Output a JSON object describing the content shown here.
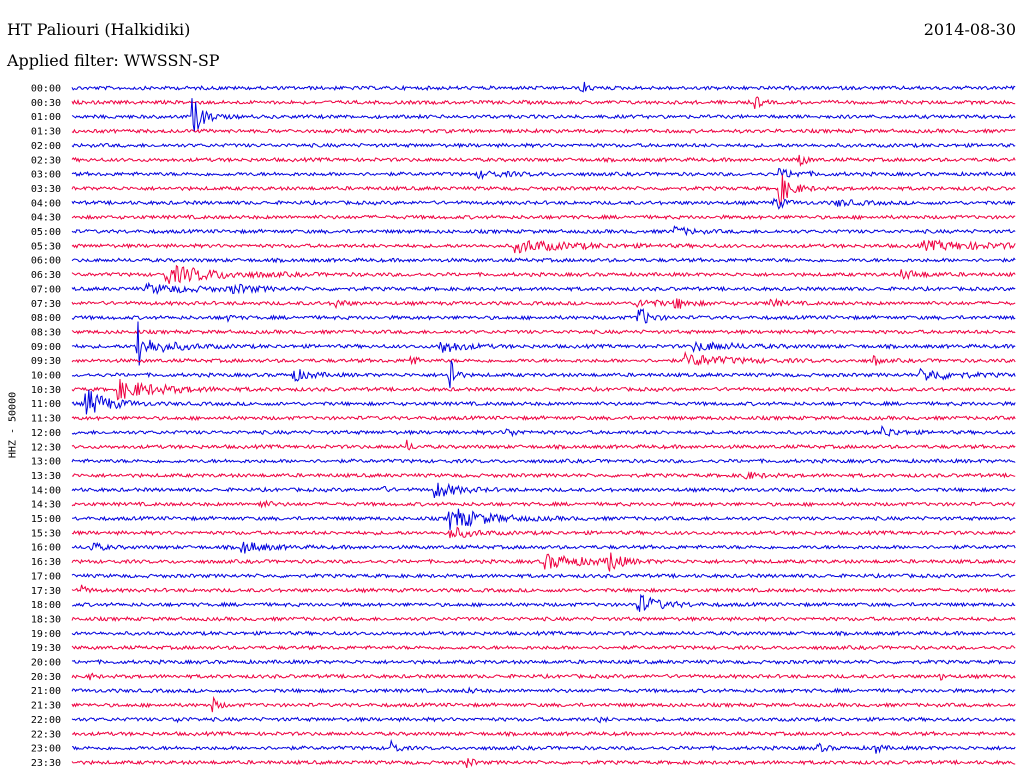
{
  "header": {
    "station": "HT Paliouri (Halkidiki)",
    "date": "2014-08-30",
    "filter": "Applied filter: WWSSN-SP"
  },
  "chart_data": {
    "type": "line",
    "title": "HT Paliouri (Halkidiki)",
    "subtitle": "Applied filter: WWSSN-SP",
    "ylabel": "HHZ - 50000",
    "colors": [
      "#0000dd",
      "#ee0040"
    ],
    "x_minutes_per_row": 30,
    "rows": [
      {
        "label": "00:00",
        "events": [
          {
            "t": 0.54,
            "a": 8,
            "d": 0.005
          }
        ]
      },
      {
        "label": "00:30",
        "events": [
          {
            "t": 0.725,
            "a": 7,
            "d": 0.004
          }
        ]
      },
      {
        "label": "01:00",
        "events": [
          {
            "t": 0.129,
            "a": 18,
            "d": 0.01
          }
        ]
      },
      {
        "label": "01:30",
        "events": []
      },
      {
        "label": "02:00",
        "events": []
      },
      {
        "label": "02:30",
        "events": [
          {
            "t": 0.77,
            "a": 10,
            "d": 0.005
          }
        ]
      },
      {
        "label": "03:00",
        "events": [
          {
            "t": 0.43,
            "a": 3,
            "d": 0.03
          },
          {
            "t": 0.75,
            "a": 4,
            "d": 0.02
          }
        ]
      },
      {
        "label": "03:30",
        "events": [
          {
            "t": 0.75,
            "a": 15,
            "d": 0.012
          }
        ]
      },
      {
        "label": "04:00",
        "events": [
          {
            "t": 0.745,
            "a": 7,
            "d": 0.008
          },
          {
            "t": 0.81,
            "a": 3,
            "d": 0.02
          }
        ]
      },
      {
        "label": "04:30",
        "events": []
      },
      {
        "label": "05:00",
        "events": [
          {
            "t": 0.64,
            "a": 4,
            "d": 0.015
          }
        ]
      },
      {
        "label": "05:30",
        "events": [
          {
            "t": 0.47,
            "a": 6,
            "d": 0.05
          },
          {
            "t": 0.9,
            "a": 4,
            "d": 0.08
          }
        ]
      },
      {
        "label": "06:00",
        "events": []
      },
      {
        "label": "06:30",
        "events": [
          {
            "t": 0.1,
            "a": 9,
            "d": 0.05
          },
          {
            "t": 0.88,
            "a": 4,
            "d": 0.02
          }
        ]
      },
      {
        "label": "07:00",
        "events": [
          {
            "t": 0.08,
            "a": 4,
            "d": 0.05
          },
          {
            "t": 0.17,
            "a": 4,
            "d": 0.02
          }
        ]
      },
      {
        "label": "07:30",
        "events": [
          {
            "t": 0.28,
            "a": 4,
            "d": 0.008
          },
          {
            "t": 0.6,
            "a": 4,
            "d": 0.02
          },
          {
            "t": 0.64,
            "a": 5,
            "d": 0.012
          },
          {
            "t": 0.74,
            "a": 4,
            "d": 0.01
          }
        ]
      },
      {
        "label": "08:00",
        "events": [
          {
            "t": 0.16,
            "a": 5,
            "d": 0.006
          },
          {
            "t": 0.6,
            "a": 11,
            "d": 0.01
          }
        ]
      },
      {
        "label": "08:30",
        "events": []
      },
      {
        "label": "09:00",
        "events": [
          {
            "t": 0.07,
            "a": 60,
            "d": 0.002
          },
          {
            "t": 0.08,
            "a": 7,
            "d": 0.03
          },
          {
            "t": 0.39,
            "a": 7,
            "d": 0.02
          },
          {
            "t": 0.66,
            "a": 4,
            "d": 0.04
          }
        ]
      },
      {
        "label": "09:30",
        "events": [
          {
            "t": 0.65,
            "a": 6,
            "d": 0.04
          },
          {
            "t": 0.85,
            "a": 6,
            "d": 0.004
          },
          {
            "t": 0.36,
            "a": 7,
            "d": 0.004
          }
        ]
      },
      {
        "label": "10:00",
        "events": [
          {
            "t": 0.235,
            "a": 6,
            "d": 0.015
          },
          {
            "t": 0.4,
            "a": 35,
            "d": 0.004
          },
          {
            "t": 0.9,
            "a": 6,
            "d": 0.03
          }
        ]
      },
      {
        "label": "10:30",
        "events": [
          {
            "t": 0.05,
            "a": 9,
            "d": 0.04
          }
        ]
      },
      {
        "label": "11:00",
        "events": [
          {
            "t": 0.015,
            "a": 15,
            "d": 0.02
          }
        ]
      },
      {
        "label": "11:30",
        "events": []
      },
      {
        "label": "12:00",
        "events": [
          {
            "t": 0.46,
            "a": 4,
            "d": 0.01
          },
          {
            "t": 0.86,
            "a": 5,
            "d": 0.012
          }
        ]
      },
      {
        "label": "12:30",
        "events": [
          {
            "t": 0.355,
            "a": 6,
            "d": 0.004
          }
        ]
      },
      {
        "label": "13:00",
        "events": []
      },
      {
        "label": "13:30",
        "events": [
          {
            "t": 0.71,
            "a": 4,
            "d": 0.015
          }
        ]
      },
      {
        "label": "14:00",
        "events": [
          {
            "t": 0.325,
            "a": 6,
            "d": 0.005
          },
          {
            "t": 0.385,
            "a": 8,
            "d": 0.02
          }
        ]
      },
      {
        "label": "14:30",
        "events": [
          {
            "t": 0.2,
            "a": 3,
            "d": 0.01
          }
        ]
      },
      {
        "label": "15:00",
        "events": [
          {
            "t": 0.4,
            "a": 11,
            "d": 0.035
          }
        ]
      },
      {
        "label": "15:30",
        "events": [
          {
            "t": 0.4,
            "a": 6,
            "d": 0.02
          }
        ]
      },
      {
        "label": "16:00",
        "events": [
          {
            "t": 0.02,
            "a": 5,
            "d": 0.01
          },
          {
            "t": 0.18,
            "a": 6,
            "d": 0.02
          }
        ]
      },
      {
        "label": "16:30",
        "events": [
          {
            "t": 0.5,
            "a": 7,
            "d": 0.04
          },
          {
            "t": 0.57,
            "a": 13,
            "d": 0.008
          }
        ]
      },
      {
        "label": "17:00",
        "events": []
      },
      {
        "label": "17:30",
        "events": [
          {
            "t": 0.01,
            "a": 4,
            "d": 0.006
          }
        ]
      },
      {
        "label": "18:00",
        "events": [
          {
            "t": 0.6,
            "a": 10,
            "d": 0.02
          }
        ]
      },
      {
        "label": "18:30",
        "events": []
      },
      {
        "label": "19:00",
        "events": []
      },
      {
        "label": "19:30",
        "events": []
      },
      {
        "label": "20:00",
        "events": []
      },
      {
        "label": "20:30",
        "events": [
          {
            "t": 0.02,
            "a": 3,
            "d": 0.004
          },
          {
            "t": 0.92,
            "a": 3,
            "d": 0.004
          }
        ]
      },
      {
        "label": "21:00",
        "events": [
          {
            "t": 0.42,
            "a": 4,
            "d": 0.004
          }
        ]
      },
      {
        "label": "21:30",
        "events": [
          {
            "t": 0.15,
            "a": 6,
            "d": 0.006
          }
        ]
      },
      {
        "label": "22:00",
        "events": [
          {
            "t": 0.11,
            "a": 3,
            "d": 0.006
          },
          {
            "t": 0.56,
            "a": 3,
            "d": 0.004
          }
        ]
      },
      {
        "label": "22:30",
        "events": []
      },
      {
        "label": "23:00",
        "events": [
          {
            "t": 0.34,
            "a": 7,
            "d": 0.005
          },
          {
            "t": 0.79,
            "a": 4,
            "d": 0.008
          },
          {
            "t": 0.85,
            "a": 7,
            "d": 0.005
          }
        ]
      },
      {
        "label": "23:30",
        "events": [
          {
            "t": 0.42,
            "a": 6,
            "d": 0.004
          }
        ]
      }
    ]
  }
}
